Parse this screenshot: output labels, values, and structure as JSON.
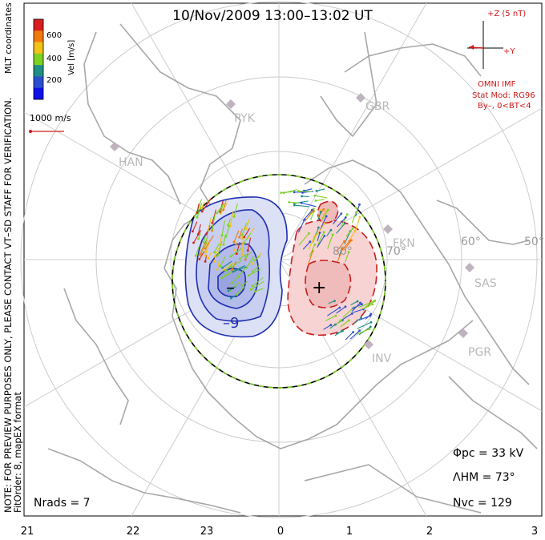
{
  "title": "10/Nov/2009 13:00–13:02 UT",
  "side_note": "NOTE: FOR PREVIEW PURPOSES ONLY, PLEASE CONTACT VT–SD STAFF FOR VERIFICATION.",
  "fit_note": "FitOrder: 8, mapEX format",
  "coordinates_label": "MLT coordinates",
  "velocity_legend": {
    "axis_label": "Vel [m/s]",
    "ticks": [
      "600",
      "400",
      "200"
    ],
    "colors": [
      "#d81e1e",
      "#f07a10",
      "#f2c21a",
      "#7ed221",
      "#1f8f86",
      "#2c4fd0",
      "#1010e8"
    ]
  },
  "reference_vector": "1000 m/s",
  "imf": {
    "z_label": "+Z (5 nT)",
    "y_label": "+Y",
    "source": "OMNI IMF",
    "stat_mod": "Stat Mod: RG96",
    "condition": "By–, 0<BT<4"
  },
  "stations": [
    "PYK",
    "GBR",
    "HAN",
    "FKN",
    "SAS",
    "PGR",
    "INV"
  ],
  "latitude_labels": [
    "80°",
    "70°",
    "60°",
    "50°"
  ],
  "mlt_labels": [
    "21",
    "22",
    "23",
    "0",
    "1",
    "2",
    "3"
  ],
  "potential_signs": {
    "min": "–",
    "max": "+"
  },
  "contour_label": "–9",
  "stats": {
    "phi_pc": "Φpc = 33 kV",
    "lambda_hm": "ΛHM = 73°",
    "n_vc": "Nvc = 129",
    "n_rads": "Nrads = 7"
  },
  "colors": {
    "negative_cell": "#1f2fb0",
    "positive_cell": "#c81e1e",
    "coast": "#a8a8a8",
    "grid": "#cccccc"
  }
}
